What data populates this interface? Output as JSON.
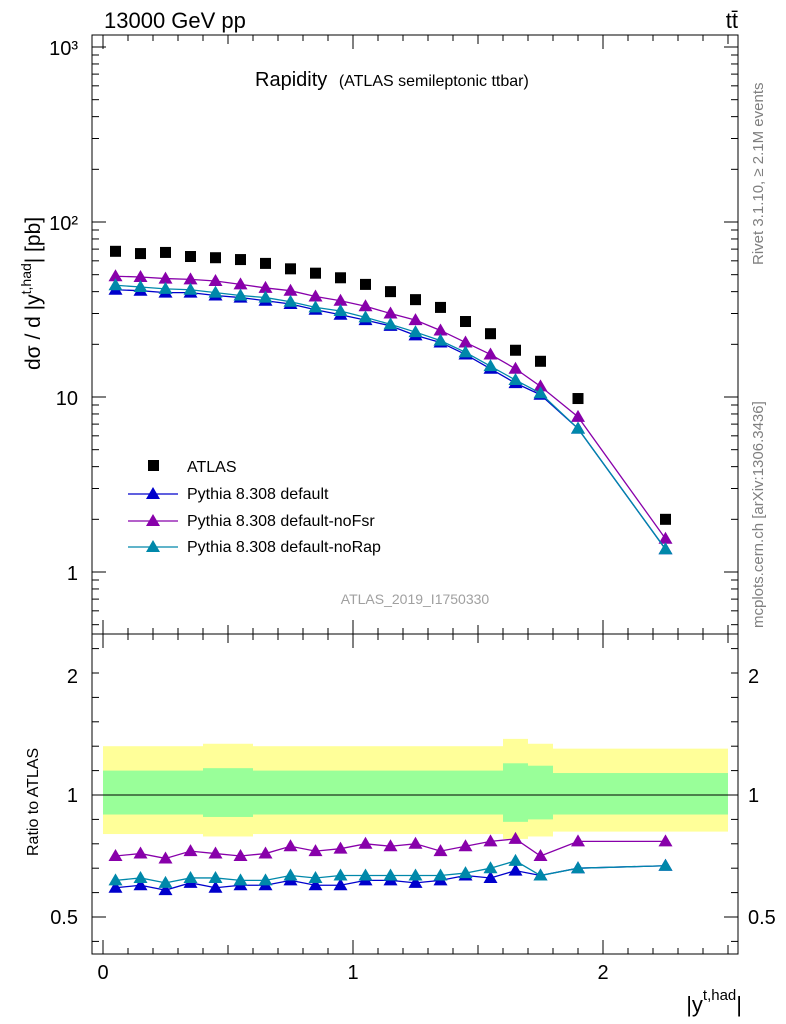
{
  "header": {
    "energy_label": "13000 GeV pp",
    "process_label": "tt̄"
  },
  "side_labels": {
    "rivet": "Rivet 3.1.10, ≥ 2.1M events",
    "mcplots": "mcplots.cern.ch [arXiv:1306.3436]"
  },
  "chart_data": [
    {
      "type": "scatter",
      "title": "Rapidity",
      "subtitle": "(ATLAS semileptonic ttbar)",
      "analysis_id": "ATLAS_2019_I1750330",
      "ylabel_main": "dσ / d |y",
      "ylabel_sup": "t,had",
      "ylabel_tail": "| [pb]",
      "xlabel_main": "|y",
      "xlabel_sup": "t,had",
      "xlabel_tail": "|",
      "yscale": "log",
      "ylim": [
        0.45,
        1200
      ],
      "xlim": [
        -0.1,
        2.55
      ],
      "legend_position": "bottom-left",
      "y_tick_labels": [
        "1",
        "10",
        "10²",
        "10³"
      ],
      "x": [
        0.05,
        0.15,
        0.25,
        0.35,
        0.45,
        0.55,
        0.65,
        0.75,
        0.85,
        0.95,
        1.05,
        1.15,
        1.25,
        1.35,
        1.45,
        1.55,
        1.65,
        1.75,
        1.9,
        2.25
      ],
      "series": [
        {
          "name": "ATLAS",
          "marker": "square",
          "color": "#000000",
          "values": [
            68.0,
            66.0,
            67.0,
            63.5,
            62.5,
            61.0,
            58.0,
            54.0,
            51.0,
            48.0,
            44.0,
            40.0,
            36.0,
            32.5,
            27.0,
            23.0,
            18.5,
            16.0,
            9.8,
            2.0
          ]
        },
        {
          "name": "Pythia 8.308 default",
          "marker": "triangle",
          "color": "#0000cc",
          "values": [
            41.0,
            40.5,
            39.5,
            39.5,
            38.0,
            37.0,
            35.5,
            34.0,
            31.5,
            29.5,
            27.5,
            25.5,
            22.5,
            20.5,
            17.5,
            14.5,
            12.0,
            10.3,
            6.6,
            1.35
          ]
        },
        {
          "name": "Pythia 8.308 default-noFsr",
          "marker": "triangle",
          "color": "#8800aa",
          "values": [
            49.0,
            48.5,
            47.5,
            47.0,
            46.0,
            44.0,
            42.0,
            40.5,
            37.5,
            35.5,
            33.0,
            30.0,
            27.5,
            24.0,
            20.5,
            17.5,
            14.5,
            11.5,
            7.7,
            1.55
          ]
        },
        {
          "name": "Pythia 8.308 default-noRap",
          "marker": "triangle",
          "color": "#0088aa",
          "values": [
            43.5,
            42.5,
            41.5,
            41.0,
            39.5,
            38.0,
            37.0,
            35.0,
            32.5,
            31.0,
            28.5,
            26.0,
            23.5,
            21.0,
            18.0,
            15.0,
            12.5,
            10.5,
            6.6,
            1.35
          ]
        }
      ]
    },
    {
      "type": "scatter",
      "ylabel": "Ratio to ATLAS",
      "ylim": [
        0.34,
        2.3
      ],
      "y_tick_labels": [
        "0.5",
        "1",
        "2"
      ],
      "x_tick_labels": [
        "0",
        "1",
        "2"
      ],
      "reference_line": 1.0,
      "band_edges": [
        0.0,
        0.1,
        0.2,
        0.3,
        0.4,
        0.5,
        0.6,
        0.7,
        0.8,
        0.9,
        1.0,
        1.1,
        1.2,
        1.3,
        1.4,
        1.5,
        1.6,
        1.7,
        1.8,
        2.0,
        2.5
      ],
      "band_outer": [
        [
          0.84,
          1.2
        ],
        [
          0.84,
          1.2
        ],
        [
          0.84,
          1.2
        ],
        [
          0.84,
          1.2
        ],
        [
          0.83,
          1.21
        ],
        [
          0.83,
          1.21
        ],
        [
          0.84,
          1.2
        ],
        [
          0.84,
          1.2
        ],
        [
          0.84,
          1.2
        ],
        [
          0.84,
          1.2
        ],
        [
          0.84,
          1.2
        ],
        [
          0.84,
          1.2
        ],
        [
          0.84,
          1.2
        ],
        [
          0.84,
          1.2
        ],
        [
          0.84,
          1.2
        ],
        [
          0.84,
          1.2
        ],
        [
          0.82,
          1.23
        ],
        [
          0.83,
          1.21
        ],
        [
          0.85,
          1.19
        ],
        [
          0.85,
          1.19
        ]
      ],
      "band_inner": [
        [
          0.92,
          1.1
        ],
        [
          0.92,
          1.1
        ],
        [
          0.92,
          1.1
        ],
        [
          0.92,
          1.1
        ],
        [
          0.91,
          1.11
        ],
        [
          0.91,
          1.11
        ],
        [
          0.92,
          1.1
        ],
        [
          0.92,
          1.1
        ],
        [
          0.92,
          1.1
        ],
        [
          0.92,
          1.1
        ],
        [
          0.92,
          1.1
        ],
        [
          0.92,
          1.1
        ],
        [
          0.92,
          1.1
        ],
        [
          0.92,
          1.1
        ],
        [
          0.92,
          1.1
        ],
        [
          0.92,
          1.1
        ],
        [
          0.89,
          1.13
        ],
        [
          0.9,
          1.12
        ],
        [
          0.92,
          1.09
        ],
        [
          0.92,
          1.09
        ]
      ],
      "series": [
        {
          "name": "Pythia 8.308 default",
          "color": "#0000cc",
          "values": [
            0.62,
            0.63,
            0.61,
            0.64,
            0.62,
            0.63,
            0.63,
            0.65,
            0.63,
            0.63,
            0.65,
            0.65,
            0.64,
            0.65,
            0.67,
            0.66,
            0.69,
            0.67,
            0.7,
            0.71
          ]
        },
        {
          "name": "Pythia 8.308 default-noFsr",
          "color": "#8800aa",
          "values": [
            0.75,
            0.76,
            0.74,
            0.77,
            0.76,
            0.75,
            0.76,
            0.79,
            0.77,
            0.78,
            0.8,
            0.79,
            0.8,
            0.77,
            0.79,
            0.81,
            0.82,
            0.75,
            0.81,
            0.81
          ]
        },
        {
          "name": "Pythia 8.308 default-noRap",
          "color": "#0088aa",
          "values": [
            0.65,
            0.66,
            0.64,
            0.66,
            0.66,
            0.65,
            0.65,
            0.67,
            0.66,
            0.67,
            0.67,
            0.67,
            0.67,
            0.67,
            0.68,
            0.7,
            0.73,
            0.67,
            0.7,
            0.71
          ]
        }
      ]
    }
  ]
}
